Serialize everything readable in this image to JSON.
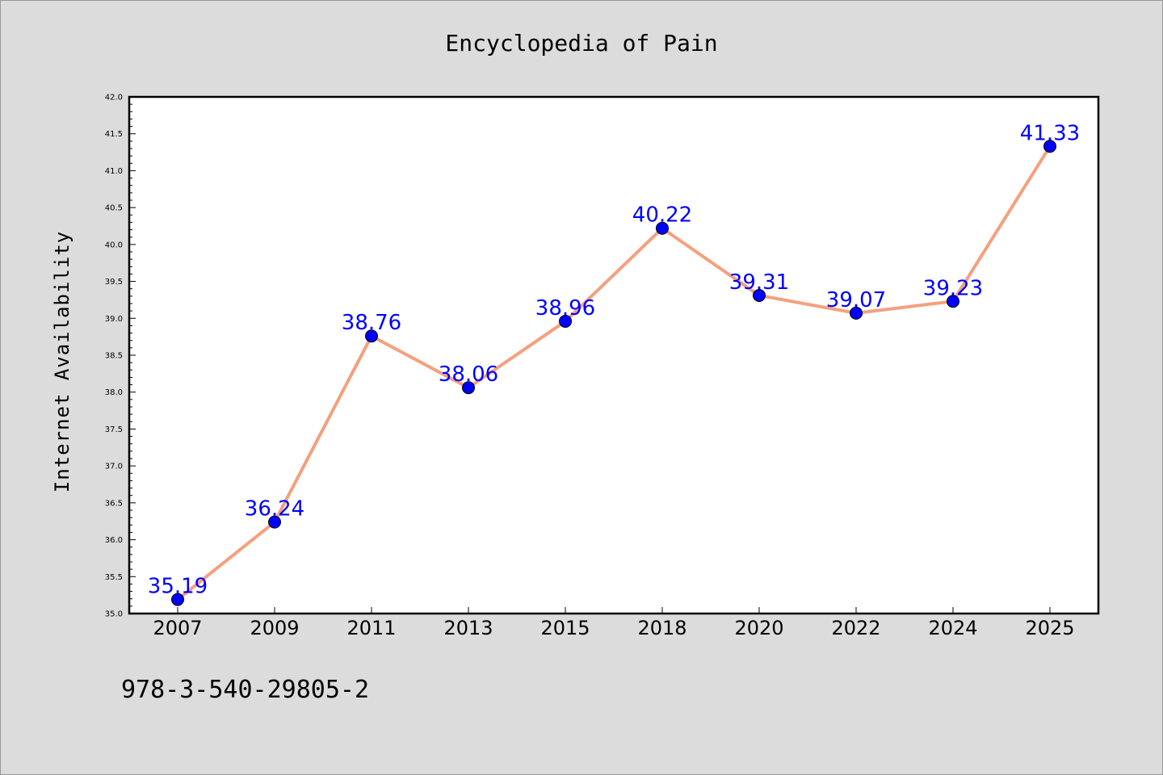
{
  "chart_data": {
    "type": "line",
    "title": "Encyclopedia of Pain",
    "xlabel": "",
    "ylabel": "Internet Availability",
    "categories": [
      "2007",
      "2009",
      "2011",
      "2013",
      "2015",
      "2018",
      "2020",
      "2022",
      "2024",
      "2025"
    ],
    "series": [
      {
        "values": [
          35.19,
          36.24,
          38.76,
          38.06,
          38.96,
          40.22,
          39.31,
          39.07,
          39.23,
          41.33
        ],
        "labels": [
          "35.19",
          "36.24",
          "38.76",
          "38.06",
          "38.96",
          "40.22",
          "39.31",
          "39.07",
          "39.23",
          "41.33"
        ],
        "line_color": "#f4a07e",
        "marker_color": "#0000ff"
      }
    ],
    "ylim": [
      35.0,
      42.0
    ],
    "yticks": [
      "35.0",
      "35.5",
      "36.0",
      "36.5",
      "37.0",
      "37.5",
      "38.0",
      "38.5",
      "39.0",
      "39.5",
      "40.0",
      "40.5",
      "41.0",
      "41.5",
      "42.0"
    ],
    "grid": false,
    "legend": "none"
  },
  "footer": {
    "code": "978-3-540-29805-2"
  }
}
